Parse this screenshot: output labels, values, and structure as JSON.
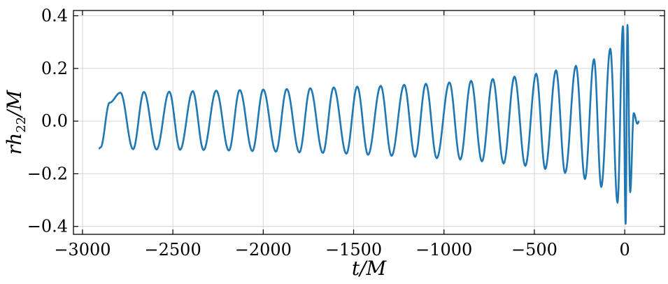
{
  "chart_data": {
    "type": "line",
    "title": "",
    "xlabel": "t/M",
    "ylabel": "rh22/M",
    "xlim": [
      -3050,
      220
    ],
    "ylim": [
      -0.43,
      0.42
    ],
    "grid": true,
    "x_ticks": [
      -3000,
      -2500,
      -2000,
      -1500,
      -1000,
      -500,
      0
    ],
    "x_tick_labels": [
      "−3000",
      "−2500",
      "−2000",
      "−1500",
      "−1000",
      "−500",
      "0"
    ],
    "y_ticks": [
      -0.4,
      -0.2,
      0.0,
      0.2,
      0.4
    ],
    "y_tick_labels": [
      "−0.4",
      "−0.2",
      "0.0",
      "0.2",
      "0.4"
    ],
    "series_color": "#1f77b4",
    "series": [
      {
        "x": [
          -2910,
          -2900,
          -2850,
          -2790,
          -2720,
          -2660,
          -2590,
          -2520,
          -2460,
          -2390,
          -2330,
          -2260,
          -2190,
          -2130,
          -2060,
          -2000,
          -1930,
          -1870,
          -1800,
          -1740,
          -1670,
          -1610,
          -1540,
          -1480,
          -1420,
          -1350,
          -1290,
          -1220,
          -1160,
          -1100,
          -1040,
          -970,
          -910,
          -850,
          -790,
          -730,
          -670,
          -610,
          -550,
          -490,
          -440,
          -380,
          -330,
          -270,
          -220,
          -170,
          -130,
          -80,
          -40,
          -10,
          5,
          15,
          30,
          50,
          70,
          80
        ],
        "y": [
          -0.105,
          -0.1,
          0.07,
          0.108,
          -0.107,
          0.111,
          -0.108,
          0.112,
          -0.109,
          0.114,
          -0.11,
          0.116,
          -0.112,
          0.118,
          -0.114,
          0.12,
          -0.116,
          0.122,
          -0.119,
          0.125,
          -0.121,
          0.128,
          -0.124,
          0.131,
          -0.128,
          0.134,
          -0.132,
          0.138,
          -0.136,
          0.142,
          -0.141,
          0.147,
          -0.146,
          0.153,
          -0.153,
          0.16,
          -0.161,
          0.169,
          -0.17,
          0.18,
          -0.182,
          0.193,
          -0.197,
          0.21,
          -0.22,
          0.235,
          -0.25,
          0.275,
          -0.31,
          0.36,
          -0.39,
          0.365,
          -0.27,
          0.03,
          -0.01,
          0.0
        ]
      }
    ]
  }
}
